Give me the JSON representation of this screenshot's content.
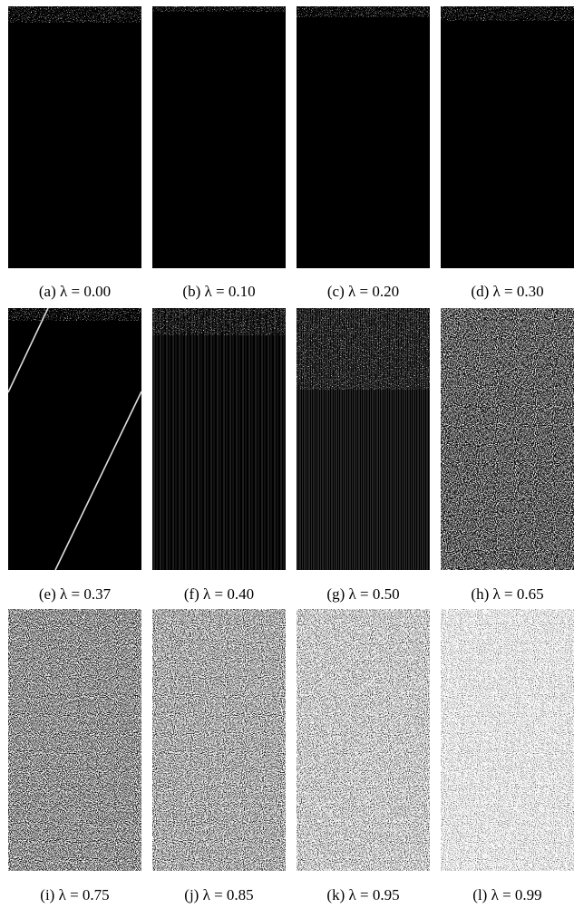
{
  "figure": {
    "panels": [
      {
        "caption": "(a) λ = 0.00"
      },
      {
        "caption": "(b) λ = 0.10"
      },
      {
        "caption": "(c) λ = 0.20"
      },
      {
        "caption": "(d) λ = 0.30"
      },
      {
        "caption": "(e) λ = 0.37"
      },
      {
        "caption": "(f) λ = 0.40"
      },
      {
        "caption": "(g) λ = 0.50"
      },
      {
        "caption": "(h) λ = 0.65"
      },
      {
        "caption": "(i) λ = 0.75"
      },
      {
        "caption": "(j) λ = 0.85"
      },
      {
        "caption": "(k) λ = 0.95"
      },
      {
        "caption": "(l) λ = 0.99"
      }
    ]
  }
}
